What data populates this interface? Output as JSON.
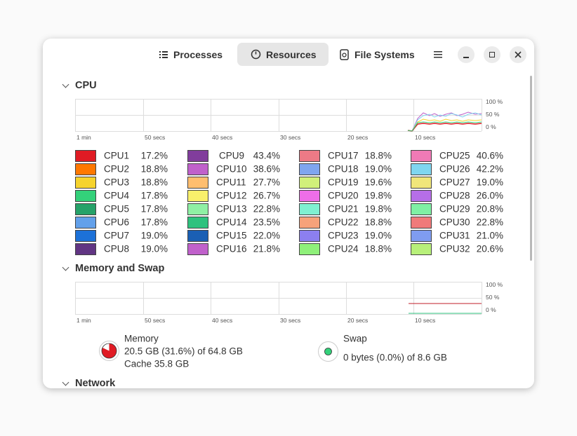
{
  "tabs": [
    "Processes",
    "Resources",
    "File Systems"
  ],
  "cpu": {
    "title": "CPU",
    "time_labels": [
      "1 min",
      "50 secs",
      "40 secs",
      "30 secs",
      "20 secs",
      "10 secs"
    ],
    "percent_labels": [
      "100 %",
      "50 %",
      "0 %"
    ],
    "cores": [
      {
        "name": "CPU1",
        "usage": "17.2%",
        "color": "#e01b24"
      },
      {
        "name": "CPU2",
        "usage": "18.8%",
        "color": "#ff7800"
      },
      {
        "name": "CPU3",
        "usage": "18.8%",
        "color": "#f6d32d"
      },
      {
        "name": "CPU4",
        "usage": "17.8%",
        "color": "#33d17a"
      },
      {
        "name": "CPU5",
        "usage": "17.8%",
        "color": "#26a269"
      },
      {
        "name": "CPU6",
        "usage": "17.8%",
        "color": "#62a0ea"
      },
      {
        "name": "CPU7",
        "usage": "19.0%",
        "color": "#1c71d8"
      },
      {
        "name": "CPU8",
        "usage": "19.0%",
        "color": "#613583"
      },
      {
        "name": "CPU9",
        "usage": "43.4%",
        "color": "#813d9c"
      },
      {
        "name": "CPU10",
        "usage": "38.6%",
        "color": "#c061cb"
      },
      {
        "name": "CPU11",
        "usage": "27.7%",
        "color": "#ffbe6f"
      },
      {
        "name": "CPU12",
        "usage": "26.7%",
        "color": "#f9f06b"
      },
      {
        "name": "CPU13",
        "usage": "22.8%",
        "color": "#8ff0a4"
      },
      {
        "name": "CPU14",
        "usage": "23.5%",
        "color": "#2ec27e"
      },
      {
        "name": "CPU15",
        "usage": "22.0%",
        "color": "#1a5fb4"
      },
      {
        "name": "CPU16",
        "usage": "21.8%",
        "color": "#c061cb"
      },
      {
        "name": "CPU17",
        "usage": "18.8%",
        "color": "#ed7a86"
      },
      {
        "name": "CPU18",
        "usage": "19.0%",
        "color": "#7fa5ef"
      },
      {
        "name": "CPU19",
        "usage": "19.6%",
        "color": "#d1f07a"
      },
      {
        "name": "CPU20",
        "usage": "19.8%",
        "color": "#ee6ee8"
      },
      {
        "name": "CPU21",
        "usage": "19.8%",
        "color": "#7ff0d1"
      },
      {
        "name": "CPU22",
        "usage": "18.8%",
        "color": "#f6a27a"
      },
      {
        "name": "CPU23",
        "usage": "19.0%",
        "color": "#8c7fef"
      },
      {
        "name": "CPU24",
        "usage": "18.8%",
        "color": "#8ff07a"
      },
      {
        "name": "CPU25",
        "usage": "40.6%",
        "color": "#f07ab6"
      },
      {
        "name": "CPU26",
        "usage": "42.2%",
        "color": "#7fd6f0"
      },
      {
        "name": "CPU27",
        "usage": "19.0%",
        "color": "#f0e67a"
      },
      {
        "name": "CPU28",
        "usage": "26.0%",
        "color": "#b66ee8"
      },
      {
        "name": "CPU29",
        "usage": "20.8%",
        "color": "#7ff0a4"
      },
      {
        "name": "CPU30",
        "usage": "22.8%",
        "color": "#f07a7a"
      },
      {
        "name": "CPU31",
        "usage": "21.0%",
        "color": "#7f9cf0"
      },
      {
        "name": "CPU32",
        "usage": "20.6%",
        "color": "#b8f07a"
      }
    ]
  },
  "memory": {
    "title": "Memory and Swap",
    "time_labels": [
      "1 min",
      "50 secs",
      "40 secs",
      "30 secs",
      "20 secs",
      "10 secs"
    ],
    "percent_labels": [
      "100 %",
      "50 %",
      "0 %"
    ],
    "memory_label": "Memory",
    "memory_used": "20.5 GB (31.6%) of 64.8 GB",
    "memory_cache": "Cache 35.8 GB",
    "swap_label": "Swap",
    "swap_used": "0 bytes (0.0%) of 8.6 GB"
  },
  "network": {
    "title": "Network"
  }
}
